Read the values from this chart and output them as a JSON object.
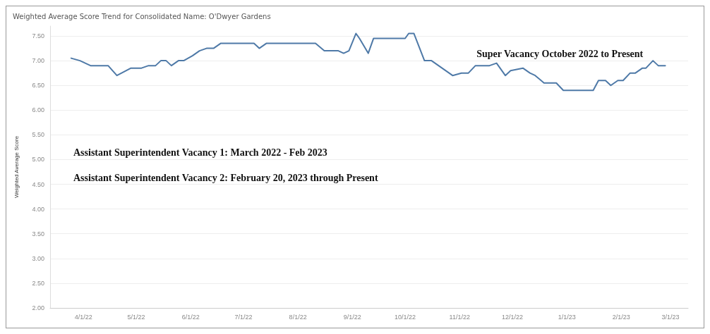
{
  "chart_data": {
    "type": "line",
    "title": "Weighted Average Score Trend for Consolidated Name: O'Dwyer Gardens",
    "ylabel": "Weighted Average Score",
    "annotations": [
      "Super Vacancy October 2022 to Present",
      "Assistant Superintendent Vacancy 1: March 2022 - Feb 2023",
      "Assistant Superintendent Vacancy 2: February 20, 2023 through Present"
    ],
    "x": [
      "2022-03-25",
      "2022-03-30",
      "2022-04-05",
      "2022-04-15",
      "2022-04-20",
      "2022-04-28",
      "2022-05-04",
      "2022-05-08",
      "2022-05-12",
      "2022-05-15",
      "2022-05-18",
      "2022-05-21",
      "2022-05-25",
      "2022-05-28",
      "2022-06-02",
      "2022-06-06",
      "2022-06-10",
      "2022-06-14",
      "2022-06-18",
      "2022-07-07",
      "2022-07-10",
      "2022-07-14",
      "2022-08-11",
      "2022-08-16",
      "2022-08-24",
      "2022-08-27",
      "2022-08-30",
      "2022-09-03",
      "2022-09-05",
      "2022-09-10",
      "2022-09-13",
      "2022-10-01",
      "2022-10-03",
      "2022-10-06",
      "2022-10-12",
      "2022-10-16",
      "2022-10-28",
      "2022-11-02",
      "2022-11-06",
      "2022-11-10",
      "2022-11-18",
      "2022-11-22",
      "2022-11-27",
      "2022-11-30",
      "2022-12-07",
      "2022-12-11",
      "2022-12-14",
      "2022-12-19",
      "2022-12-26",
      "2022-12-30",
      "2023-01-16",
      "2023-01-19",
      "2023-01-23",
      "2023-01-26",
      "2023-01-30",
      "2023-02-02",
      "2023-02-06",
      "2023-02-09",
      "2023-02-13",
      "2023-02-15",
      "2023-02-19",
      "2023-02-22",
      "2023-02-26"
    ],
    "series": [
      {
        "color": "#4e79a7",
        "values": [
          7.05,
          7.0,
          6.9,
          6.9,
          6.7,
          6.85,
          6.85,
          6.9,
          6.9,
          7.0,
          7.0,
          6.9,
          7.0,
          7.0,
          7.1,
          7.2,
          7.25,
          7.25,
          7.35,
          7.35,
          7.25,
          7.35,
          7.35,
          7.2,
          7.2,
          7.15,
          7.2,
          7.55,
          7.45,
          7.15,
          7.45,
          7.45,
          7.55,
          7.55,
          7.0,
          7.0,
          6.7,
          6.75,
          6.75,
          6.9,
          6.9,
          6.95,
          6.7,
          6.8,
          6.85,
          6.75,
          6.7,
          6.55,
          6.55,
          6.4,
          6.4,
          6.6,
          6.6,
          6.5,
          6.6,
          6.6,
          6.75,
          6.75,
          6.85,
          6.85,
          7.0,
          6.9,
          6.9
        ]
      }
    ],
    "xlim": [
      "2022-03-13",
      "2023-03-11"
    ],
    "xticks": [
      {
        "value": "2022-04-01",
        "label": "4/1/22"
      },
      {
        "value": "2022-05-01",
        "label": "5/1/22"
      },
      {
        "value": "2022-06-01",
        "label": "6/1/22"
      },
      {
        "value": "2022-07-01",
        "label": "7/1/22"
      },
      {
        "value": "2022-08-01",
        "label": "8/1/22"
      },
      {
        "value": "2022-09-01",
        "label": "9/1/22"
      },
      {
        "value": "2022-10-01",
        "label": "10/1/22"
      },
      {
        "value": "2022-11-01",
        "label": "11/1/22"
      },
      {
        "value": "2022-12-01",
        "label": "12/1/22"
      },
      {
        "value": "2023-01-01",
        "label": "1/1/23"
      },
      {
        "value": "2023-02-01",
        "label": "2/1/23"
      },
      {
        "value": "2023-03-01",
        "label": "3/1/23"
      }
    ],
    "ylim": [
      2.0,
      7.7
    ],
    "yticks": [
      {
        "value": 2,
        "label": "2.00"
      },
      {
        "value": 2.5,
        "label": "2.50"
      },
      {
        "value": 3,
        "label": "3.00"
      },
      {
        "value": 3.5,
        "label": "3.50"
      },
      {
        "value": 4,
        "label": "4.00"
      },
      {
        "value": 4.5,
        "label": "4.50"
      },
      {
        "value": 5,
        "label": "5.00"
      },
      {
        "value": 5.5,
        "label": "5.50"
      },
      {
        "value": 6,
        "label": "6.00"
      },
      {
        "value": 6.5,
        "label": "6.50"
      },
      {
        "value": 7,
        "label": "7.00"
      },
      {
        "value": 7.5,
        "label": "7.50"
      }
    ],
    "grid": "y",
    "marker": "none",
    "line_style": "solid"
  }
}
